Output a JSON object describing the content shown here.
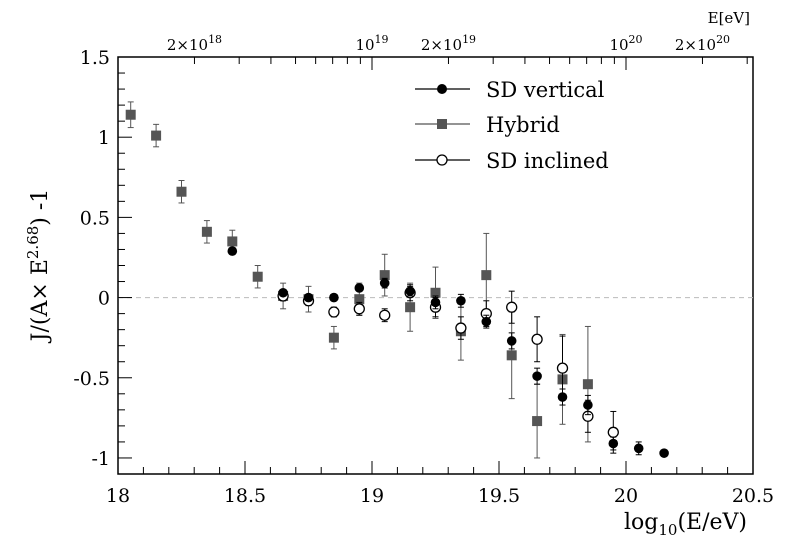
{
  "chart_data": {
    "type": "scatter",
    "x_label": "log10(E/eV)",
    "y_label": "J/(A× E^2.68) -1",
    "top_axis_label": "E[eV]",
    "xlim": [
      18.0,
      20.5
    ],
    "ylim": [
      -1.1,
      1.5
    ],
    "x_ticks": [
      18,
      18.5,
      19,
      19.5,
      20,
      20.5
    ],
    "x_tick_labels": [
      "18",
      "18.5",
      "19",
      "19.5",
      "20",
      "20.5"
    ],
    "y_ticks": [
      -1,
      -0.5,
      0,
      0.5,
      1,
      1.5
    ],
    "y_tick_labels": [
      "-1",
      "-0.5",
      "0",
      "0.5",
      "1",
      "1.5"
    ],
    "top_ticks": [
      {
        "energy_eV": 2e+18,
        "mantissa": "2",
        "exponent": "18"
      },
      {
        "energy_eV": 1e+19,
        "mantissa": "",
        "exponent": "19"
      },
      {
        "energy_eV": 2e+19,
        "mantissa": "2",
        "exponent": "19"
      },
      {
        "energy_eV": 1e+20,
        "mantissa": "",
        "exponent": "20"
      },
      {
        "energy_eV": 2e+20,
        "mantissa": "2",
        "exponent": "20"
      }
    ],
    "reference_line_y": 0,
    "legend_position": "top-right",
    "series": [
      {
        "name": "SD vertical",
        "marker": "filled-circle",
        "color": "#000000",
        "points": [
          {
            "x": 18.45,
            "y": 0.29,
            "err": 0.02
          },
          {
            "x": 18.65,
            "y": 0.03,
            "err": 0.02
          },
          {
            "x": 18.75,
            "y": 0.0,
            "err": 0.02
          },
          {
            "x": 18.85,
            "y": 0.0,
            "err": 0.02
          },
          {
            "x": 18.95,
            "y": 0.06,
            "err": 0.02
          },
          {
            "x": 19.05,
            "y": 0.09,
            "err": 0.03
          },
          {
            "x": 19.15,
            "y": 0.04,
            "err": 0.03
          },
          {
            "x": 19.25,
            "y": -0.03,
            "err": 0.04
          },
          {
            "x": 19.35,
            "y": -0.02,
            "err": 0.04
          },
          {
            "x": 19.45,
            "y": -0.15,
            "err": 0.04
          },
          {
            "x": 19.55,
            "y": -0.27,
            "err": 0.05
          },
          {
            "x": 19.65,
            "y": -0.49,
            "err": 0.05
          },
          {
            "x": 19.75,
            "y": -0.62,
            "err": 0.05
          },
          {
            "x": 19.85,
            "y": -0.67,
            "err": 0.06
          },
          {
            "x": 19.95,
            "y": -0.91,
            "err": 0.04
          },
          {
            "x": 20.05,
            "y": -0.94,
            "err": 0.04
          },
          {
            "x": 20.15,
            "y": -0.97,
            "err": 0.02
          }
        ]
      },
      {
        "name": "Hybrid",
        "marker": "filled-square",
        "color": "#555555",
        "points": [
          {
            "x": 18.05,
            "y": 1.14,
            "err": 0.08
          },
          {
            "x": 18.15,
            "y": 1.01,
            "err": 0.07
          },
          {
            "x": 18.25,
            "y": 0.66,
            "err": 0.07
          },
          {
            "x": 18.35,
            "y": 0.41,
            "err": 0.07
          },
          {
            "x": 18.45,
            "y": 0.35,
            "err": 0.07
          },
          {
            "x": 18.55,
            "y": 0.13,
            "err": 0.07
          },
          {
            "x": 18.65,
            "y": 0.01,
            "err": 0.08
          },
          {
            "x": 18.75,
            "y": -0.01,
            "err": 0.08
          },
          {
            "x": 18.85,
            "y": -0.25,
            "err": 0.07
          },
          {
            "x": 18.95,
            "y": -0.01,
            "err": 0.1
          },
          {
            "x": 19.05,
            "y": 0.14,
            "err": 0.13
          },
          {
            "x": 19.15,
            "y": -0.06,
            "err": 0.15
          },
          {
            "x": 19.25,
            "y": 0.03,
            "err": 0.16
          },
          {
            "x": 19.35,
            "y": -0.21,
            "err": 0.18
          },
          {
            "x": 19.45,
            "y": 0.14,
            "err": 0.26
          },
          {
            "x": 19.55,
            "y": -0.36,
            "err": 0.27
          },
          {
            "x": 19.65,
            "y": -0.77,
            "err": 0.23
          },
          {
            "x": 19.75,
            "y": -0.51,
            "err": 0.28
          },
          {
            "x": 19.85,
            "y": -0.54,
            "err": 0.36
          }
        ]
      },
      {
        "name": "SD inclined",
        "marker": "open-circle",
        "color": "#000000",
        "points": [
          {
            "x": 18.65,
            "y": 0.01,
            "err": 0.03
          },
          {
            "x": 18.75,
            "y": -0.02,
            "err": 0.03
          },
          {
            "x": 18.85,
            "y": -0.09,
            "err": 0.03
          },
          {
            "x": 18.95,
            "y": -0.07,
            "err": 0.04
          },
          {
            "x": 19.05,
            "y": -0.11,
            "err": 0.04
          },
          {
            "x": 19.15,
            "y": 0.03,
            "err": 0.05
          },
          {
            "x": 19.25,
            "y": -0.06,
            "err": 0.06
          },
          {
            "x": 19.35,
            "y": -0.19,
            "err": 0.07
          },
          {
            "x": 19.45,
            "y": -0.1,
            "err": 0.08
          },
          {
            "x": 19.55,
            "y": -0.06,
            "err": 0.1
          },
          {
            "x": 19.65,
            "y": -0.26,
            "err": 0.14
          },
          {
            "x": 19.75,
            "y": -0.44,
            "err": 0.2
          },
          {
            "x": 19.85,
            "y": -0.74,
            "err": 0.1
          },
          {
            "x": 19.95,
            "y": -0.84,
            "err": 0.13
          }
        ]
      }
    ]
  }
}
